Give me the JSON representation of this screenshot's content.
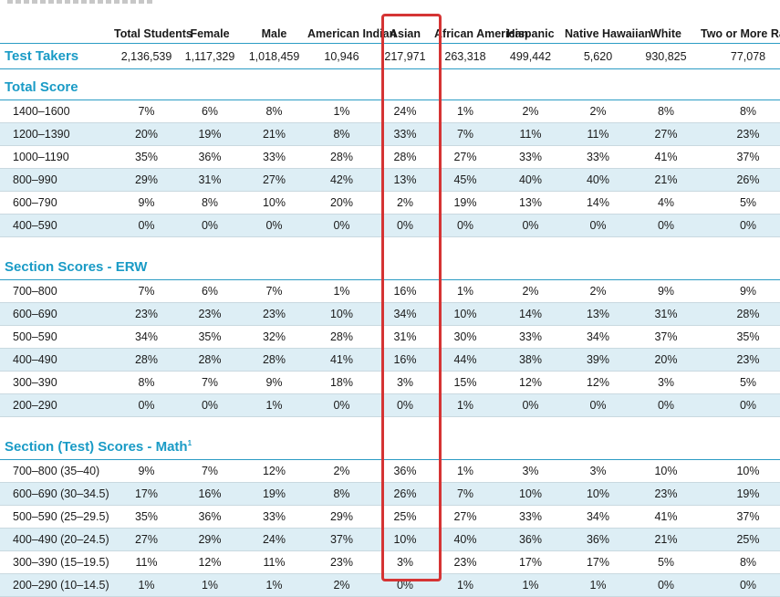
{
  "columns": [
    "Total Students",
    "Female",
    "Male",
    "American Indian",
    "Asian",
    "African American",
    "Hispanic",
    "Native Hawaiian",
    "White",
    "Two or More Races"
  ],
  "test_takers": {
    "label": "Test Takers",
    "values": [
      "2,136,539",
      "1,117,329",
      "1,018,459",
      "10,946",
      "217,971",
      "263,318",
      "499,442",
      "5,620",
      "930,825",
      "77,078"
    ]
  },
  "sections": [
    {
      "title": "Total Score",
      "rows": [
        {
          "label": "1400–1600",
          "values": [
            "7%",
            "6%",
            "8%",
            "1%",
            "24%",
            "1%",
            "2%",
            "2%",
            "8%",
            "8%"
          ]
        },
        {
          "label": "1200–1390",
          "values": [
            "20%",
            "19%",
            "21%",
            "8%",
            "33%",
            "7%",
            "11%",
            "11%",
            "27%",
            "23%"
          ]
        },
        {
          "label": "1000–1190",
          "values": [
            "35%",
            "36%",
            "33%",
            "28%",
            "28%",
            "27%",
            "33%",
            "33%",
            "41%",
            "37%"
          ]
        },
        {
          "label": "800–990",
          "values": [
            "29%",
            "31%",
            "27%",
            "42%",
            "13%",
            "45%",
            "40%",
            "40%",
            "21%",
            "26%"
          ]
        },
        {
          "label": "600–790",
          "values": [
            "9%",
            "8%",
            "10%",
            "20%",
            "2%",
            "19%",
            "13%",
            "14%",
            "4%",
            "5%"
          ]
        },
        {
          "label": "400–590",
          "values": [
            "0%",
            "0%",
            "0%",
            "0%",
            "0%",
            "0%",
            "0%",
            "0%",
            "0%",
            "0%"
          ]
        }
      ]
    },
    {
      "title": "Section Scores - ERW",
      "rows": [
        {
          "label": "700–800",
          "values": [
            "7%",
            "6%",
            "7%",
            "1%",
            "16%",
            "1%",
            "2%",
            "2%",
            "9%",
            "9%"
          ]
        },
        {
          "label": "600–690",
          "values": [
            "23%",
            "23%",
            "23%",
            "10%",
            "34%",
            "10%",
            "14%",
            "13%",
            "31%",
            "28%"
          ]
        },
        {
          "label": "500–590",
          "values": [
            "34%",
            "35%",
            "32%",
            "28%",
            "31%",
            "30%",
            "33%",
            "34%",
            "37%",
            "35%"
          ]
        },
        {
          "label": "400–490",
          "values": [
            "28%",
            "28%",
            "28%",
            "41%",
            "16%",
            "44%",
            "38%",
            "39%",
            "20%",
            "23%"
          ]
        },
        {
          "label": "300–390",
          "values": [
            "8%",
            "7%",
            "9%",
            "18%",
            "3%",
            "15%",
            "12%",
            "12%",
            "3%",
            "5%"
          ]
        },
        {
          "label": "200–290",
          "values": [
            "0%",
            "0%",
            "1%",
            "0%",
            "0%",
            "1%",
            "0%",
            "0%",
            "0%",
            "0%"
          ]
        }
      ]
    },
    {
      "title": "Section (Test) Scores - Math",
      "title_sup": "1",
      "rows": [
        {
          "label": "700–800 (35–40)",
          "values": [
            "9%",
            "7%",
            "12%",
            "2%",
            "36%",
            "1%",
            "3%",
            "3%",
            "10%",
            "10%"
          ]
        },
        {
          "label": "600–690 (30–34.5)",
          "values": [
            "17%",
            "16%",
            "19%",
            "8%",
            "26%",
            "7%",
            "10%",
            "10%",
            "23%",
            "19%"
          ]
        },
        {
          "label": "500–590 (25–29.5)",
          "values": [
            "35%",
            "36%",
            "33%",
            "29%",
            "25%",
            "27%",
            "33%",
            "34%",
            "41%",
            "37%"
          ]
        },
        {
          "label": "400–490 (20–24.5)",
          "values": [
            "27%",
            "29%",
            "24%",
            "37%",
            "10%",
            "40%",
            "36%",
            "36%",
            "21%",
            "25%"
          ]
        },
        {
          "label": "300–390 (15–19.5)",
          "values": [
            "11%",
            "12%",
            "11%",
            "23%",
            "3%",
            "23%",
            "17%",
            "17%",
            "5%",
            "8%"
          ]
        },
        {
          "label": "200–290 (10–14.5)",
          "values": [
            "1%",
            "1%",
            "1%",
            "2%",
            "0%",
            "1%",
            "1%",
            "1%",
            "0%",
            "0%"
          ]
        }
      ]
    }
  ],
  "highlight": {
    "column": "Asian",
    "color": "#d53434"
  },
  "colors": {
    "accent": "#1a9bc6",
    "row_shade": "#ddeef5"
  }
}
